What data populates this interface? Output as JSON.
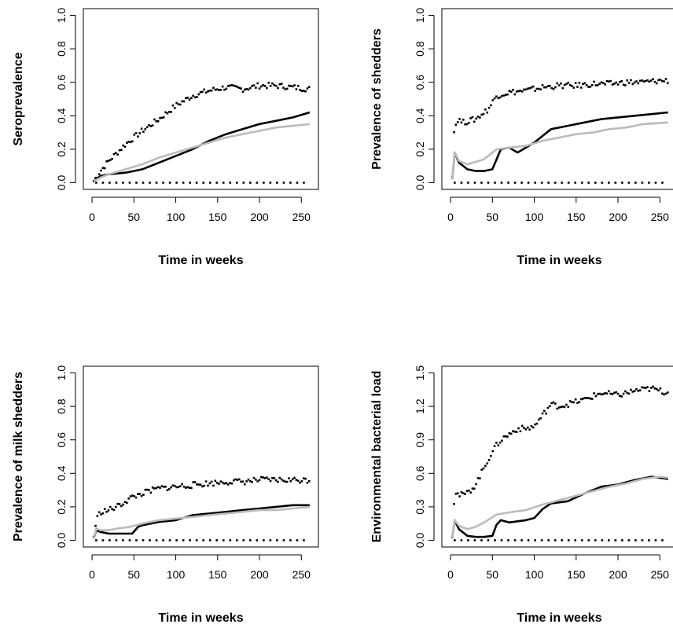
{
  "chart_data": [
    {
      "type": "line",
      "xlabel": "Time in weeks",
      "ylabel": "Seroprevalence",
      "xlim": [
        0,
        260
      ],
      "ylim": [
        0,
        1.0
      ],
      "xticks": [
        "0",
        "50",
        "100",
        "150",
        "200",
        "250"
      ],
      "yticks": [
        "0.0",
        "0.2",
        "0.4",
        "0.6",
        "0.8",
        "1.0"
      ],
      "grid": false,
      "series": [
        {
          "style": "dotted-upper",
          "color": "#000000",
          "x": [
            2,
            10,
            20,
            40,
            60,
            80,
            100,
            120,
            140,
            160,
            180,
            200,
            220,
            240,
            260
          ],
          "y": [
            0.01,
            0.07,
            0.13,
            0.23,
            0.31,
            0.38,
            0.46,
            0.52,
            0.55,
            0.57,
            0.56,
            0.58,
            0.58,
            0.57,
            0.56
          ]
        },
        {
          "style": "solid-mean",
          "color": "#000000",
          "x": [
            2,
            10,
            20,
            40,
            50,
            60,
            80,
            100,
            120,
            140,
            160,
            180,
            200,
            220,
            240,
            260
          ],
          "y": [
            0.01,
            0.04,
            0.05,
            0.06,
            0.07,
            0.08,
            0.12,
            0.16,
            0.2,
            0.25,
            0.29,
            0.32,
            0.35,
            0.37,
            0.39,
            0.42
          ]
        },
        {
          "style": "grey-model",
          "color": "#bbbbbb",
          "x": [
            2,
            10,
            20,
            40,
            60,
            80,
            100,
            120,
            140,
            160,
            180,
            200,
            220,
            240,
            260
          ],
          "y": [
            0.01,
            0.03,
            0.05,
            0.08,
            0.11,
            0.15,
            0.18,
            0.21,
            0.24,
            0.27,
            0.29,
            0.31,
            0.33,
            0.34,
            0.35
          ]
        },
        {
          "style": "dotted-lower",
          "color": "#000000",
          "x": [
            5,
            260
          ],
          "y": [
            0.0,
            0.0
          ]
        }
      ]
    },
    {
      "type": "line",
      "xlabel": "Time in weeks",
      "ylabel": "Prevalence of shedders",
      "xlim": [
        0,
        260
      ],
      "ylim": [
        0,
        1.0
      ],
      "xticks": [
        "0",
        "50",
        "100",
        "150",
        "200",
        "250"
      ],
      "yticks": [
        "0.0",
        "0.2",
        "0.4",
        "0.6",
        "0.8",
        "1.0"
      ],
      "grid": false,
      "series": [
        {
          "style": "dotted-upper",
          "color": "#000000",
          "x": [
            2,
            4,
            8,
            15,
            30,
            45,
            55,
            70,
            90,
            110,
            130,
            150,
            170,
            190,
            210,
            230,
            250,
            260
          ],
          "y": [
            0.05,
            0.3,
            0.38,
            0.36,
            0.38,
            0.44,
            0.52,
            0.54,
            0.55,
            0.57,
            0.58,
            0.58,
            0.59,
            0.59,
            0.6,
            0.6,
            0.61,
            0.61
          ]
        },
        {
          "style": "solid-mean",
          "color": "#000000",
          "x": [
            2,
            5,
            10,
            20,
            30,
            40,
            50,
            60,
            70,
            80,
            100,
            110,
            120,
            140,
            160,
            180,
            200,
            220,
            240,
            260
          ],
          "y": [
            0.02,
            0.18,
            0.12,
            0.08,
            0.07,
            0.07,
            0.08,
            0.2,
            0.21,
            0.18,
            0.24,
            0.28,
            0.32,
            0.34,
            0.36,
            0.38,
            0.39,
            0.4,
            0.41,
            0.42
          ]
        },
        {
          "style": "grey-model",
          "color": "#bbbbbb",
          "x": [
            2,
            5,
            10,
            20,
            40,
            55,
            70,
            90,
            110,
            130,
            150,
            170,
            190,
            210,
            230,
            260
          ],
          "y": [
            0.02,
            0.18,
            0.13,
            0.11,
            0.14,
            0.2,
            0.21,
            0.22,
            0.25,
            0.27,
            0.29,
            0.3,
            0.32,
            0.33,
            0.35,
            0.36
          ]
        },
        {
          "style": "dotted-lower",
          "color": "#000000",
          "x": [
            5,
            260
          ],
          "y": [
            0.0,
            0.0
          ]
        }
      ]
    },
    {
      "type": "line",
      "xlabel": "Time in weeks",
      "ylabel": "Prevalence of milk shedders",
      "xlim": [
        0,
        260
      ],
      "ylim": [
        0,
        1.0
      ],
      "xticks": [
        "0",
        "50",
        "100",
        "150",
        "200",
        "250"
      ],
      "yticks": [
        "0.0",
        "0.2",
        "0.4",
        "0.6",
        "0.8",
        "1.0"
      ],
      "grid": false,
      "series": [
        {
          "style": "dotted-upper",
          "color": "#000000",
          "x": [
            2,
            5,
            10,
            20,
            30,
            45,
            60,
            80,
            100,
            120,
            140,
            160,
            180,
            200,
            220,
            240,
            260
          ],
          "y": [
            0.02,
            0.12,
            0.17,
            0.18,
            0.2,
            0.25,
            0.28,
            0.31,
            0.32,
            0.33,
            0.34,
            0.35,
            0.35,
            0.36,
            0.36,
            0.36,
            0.36
          ]
        },
        {
          "style": "solid-mean",
          "color": "#000000",
          "x": [
            2,
            5,
            10,
            20,
            30,
            40,
            48,
            55,
            60,
            80,
            100,
            120,
            140,
            160,
            180,
            200,
            220,
            240,
            260
          ],
          "y": [
            0.01,
            0.06,
            0.05,
            0.04,
            0.04,
            0.04,
            0.04,
            0.08,
            0.09,
            0.11,
            0.12,
            0.15,
            0.16,
            0.17,
            0.18,
            0.19,
            0.2,
            0.21,
            0.21
          ]
        },
        {
          "style": "grey-model",
          "color": "#bbbbbb",
          "x": [
            2,
            5,
            10,
            20,
            30,
            45,
            60,
            80,
            100,
            120,
            140,
            160,
            180,
            200,
            220,
            240,
            260
          ],
          "y": [
            0.01,
            0.07,
            0.06,
            0.06,
            0.07,
            0.08,
            0.1,
            0.12,
            0.13,
            0.14,
            0.15,
            0.16,
            0.17,
            0.18,
            0.18,
            0.19,
            0.2
          ]
        },
        {
          "style": "dotted-lower",
          "color": "#000000",
          "x": [
            5,
            260
          ],
          "y": [
            0.0,
            0.0
          ]
        }
      ]
    },
    {
      "type": "line",
      "xlabel": "Time in weeks",
      "ylabel": "Environmental bacterial load",
      "xlim": [
        0,
        260
      ],
      "ylim": [
        0,
        1.5
      ],
      "xticks": [
        "0",
        "50",
        "100",
        "150",
        "200",
        "250"
      ],
      "yticks": [
        "0.0",
        "0.3",
        "0.6",
        "0.9",
        "1.2",
        "1.5"
      ],
      "grid": false,
      "series": [
        {
          "style": "dotted-upper",
          "color": "#000000",
          "x": [
            2,
            5,
            10,
            20,
            30,
            40,
            50,
            60,
            70,
            80,
            90,
            100,
            110,
            120,
            130,
            140,
            160,
            180,
            200,
            220,
            240,
            260
          ],
          "y": [
            0.05,
            0.45,
            0.4,
            0.42,
            0.5,
            0.65,
            0.8,
            0.9,
            0.95,
            1.0,
            1.0,
            1.02,
            1.12,
            1.22,
            1.2,
            1.22,
            1.26,
            1.32,
            1.3,
            1.34,
            1.36,
            1.32
          ]
        },
        {
          "style": "solid-mean",
          "color": "#000000",
          "x": [
            2,
            5,
            10,
            20,
            30,
            40,
            50,
            55,
            60,
            70,
            80,
            90,
            100,
            110,
            120,
            140,
            160,
            180,
            200,
            220,
            240,
            260
          ],
          "y": [
            0.02,
            0.18,
            0.1,
            0.04,
            0.03,
            0.03,
            0.04,
            0.14,
            0.18,
            0.16,
            0.17,
            0.18,
            0.2,
            0.28,
            0.33,
            0.35,
            0.42,
            0.48,
            0.5,
            0.54,
            0.57,
            0.55
          ]
        },
        {
          "style": "grey-model",
          "color": "#bbbbbb",
          "x": [
            2,
            5,
            10,
            20,
            30,
            40,
            55,
            70,
            90,
            110,
            130,
            150,
            170,
            190,
            210,
            230,
            250,
            260
          ],
          "y": [
            0.02,
            0.18,
            0.13,
            0.1,
            0.12,
            0.16,
            0.23,
            0.25,
            0.27,
            0.32,
            0.36,
            0.4,
            0.44,
            0.48,
            0.51,
            0.55,
            0.57,
            0.56
          ]
        },
        {
          "style": "dotted-lower",
          "color": "#000000",
          "x": [
            5,
            260
          ],
          "y": [
            0.0,
            0.0
          ]
        }
      ]
    }
  ]
}
